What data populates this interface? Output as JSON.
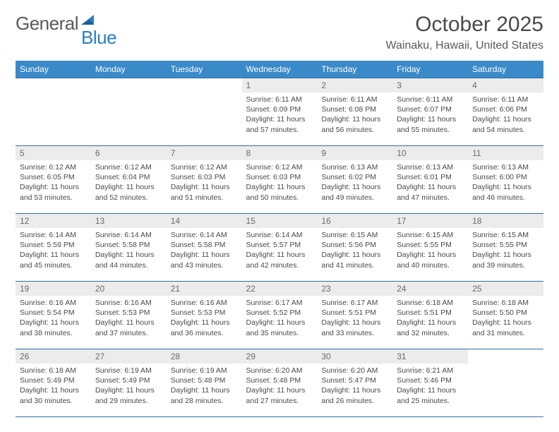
{
  "logo": {
    "word1": "General",
    "word2": "Blue"
  },
  "title": "October 2025",
  "location": "Wainaku, Hawaii, United States",
  "colors": {
    "header_bg": "#3a8ac9",
    "header_text": "#ffffff",
    "rule": "#2f6fa3",
    "daynum_bg": "#ececec",
    "text": "#4a4a4a",
    "logo_blue": "#2a7ec7"
  },
  "day_labels": [
    "Sunday",
    "Monday",
    "Tuesday",
    "Wednesday",
    "Thursday",
    "Friday",
    "Saturday"
  ],
  "weeks": [
    [
      {
        "num": "",
        "sunrise": "",
        "sunset": "",
        "daylight": "",
        "empty": true
      },
      {
        "num": "",
        "sunrise": "",
        "sunset": "",
        "daylight": "",
        "empty": true
      },
      {
        "num": "",
        "sunrise": "",
        "sunset": "",
        "daylight": "",
        "empty": true
      },
      {
        "num": "1",
        "sunrise": "Sunrise: 6:11 AM",
        "sunset": "Sunset: 6:09 PM",
        "daylight": "Daylight: 11 hours and 57 minutes."
      },
      {
        "num": "2",
        "sunrise": "Sunrise: 6:11 AM",
        "sunset": "Sunset: 6:08 PM",
        "daylight": "Daylight: 11 hours and 56 minutes."
      },
      {
        "num": "3",
        "sunrise": "Sunrise: 6:11 AM",
        "sunset": "Sunset: 6:07 PM",
        "daylight": "Daylight: 11 hours and 55 minutes."
      },
      {
        "num": "4",
        "sunrise": "Sunrise: 6:11 AM",
        "sunset": "Sunset: 6:06 PM",
        "daylight": "Daylight: 11 hours and 54 minutes."
      }
    ],
    [
      {
        "num": "5",
        "sunrise": "Sunrise: 6:12 AM",
        "sunset": "Sunset: 6:05 PM",
        "daylight": "Daylight: 11 hours and 53 minutes."
      },
      {
        "num": "6",
        "sunrise": "Sunrise: 6:12 AM",
        "sunset": "Sunset: 6:04 PM",
        "daylight": "Daylight: 11 hours and 52 minutes."
      },
      {
        "num": "7",
        "sunrise": "Sunrise: 6:12 AM",
        "sunset": "Sunset: 6:03 PM",
        "daylight": "Daylight: 11 hours and 51 minutes."
      },
      {
        "num": "8",
        "sunrise": "Sunrise: 6:12 AM",
        "sunset": "Sunset: 6:03 PM",
        "daylight": "Daylight: 11 hours and 50 minutes."
      },
      {
        "num": "9",
        "sunrise": "Sunrise: 6:13 AM",
        "sunset": "Sunset: 6:02 PM",
        "daylight": "Daylight: 11 hours and 49 minutes."
      },
      {
        "num": "10",
        "sunrise": "Sunrise: 6:13 AM",
        "sunset": "Sunset: 6:01 PM",
        "daylight": "Daylight: 11 hours and 47 minutes."
      },
      {
        "num": "11",
        "sunrise": "Sunrise: 6:13 AM",
        "sunset": "Sunset: 6:00 PM",
        "daylight": "Daylight: 11 hours and 46 minutes."
      }
    ],
    [
      {
        "num": "12",
        "sunrise": "Sunrise: 6:14 AM",
        "sunset": "Sunset: 5:59 PM",
        "daylight": "Daylight: 11 hours and 45 minutes."
      },
      {
        "num": "13",
        "sunrise": "Sunrise: 6:14 AM",
        "sunset": "Sunset: 5:58 PM",
        "daylight": "Daylight: 11 hours and 44 minutes."
      },
      {
        "num": "14",
        "sunrise": "Sunrise: 6:14 AM",
        "sunset": "Sunset: 5:58 PM",
        "daylight": "Daylight: 11 hours and 43 minutes."
      },
      {
        "num": "15",
        "sunrise": "Sunrise: 6:14 AM",
        "sunset": "Sunset: 5:57 PM",
        "daylight": "Daylight: 11 hours and 42 minutes."
      },
      {
        "num": "16",
        "sunrise": "Sunrise: 6:15 AM",
        "sunset": "Sunset: 5:56 PM",
        "daylight": "Daylight: 11 hours and 41 minutes."
      },
      {
        "num": "17",
        "sunrise": "Sunrise: 6:15 AM",
        "sunset": "Sunset: 5:55 PM",
        "daylight": "Daylight: 11 hours and 40 minutes."
      },
      {
        "num": "18",
        "sunrise": "Sunrise: 6:15 AM",
        "sunset": "Sunset: 5:55 PM",
        "daylight": "Daylight: 11 hours and 39 minutes."
      }
    ],
    [
      {
        "num": "19",
        "sunrise": "Sunrise: 6:16 AM",
        "sunset": "Sunset: 5:54 PM",
        "daylight": "Daylight: 11 hours and 38 minutes."
      },
      {
        "num": "20",
        "sunrise": "Sunrise: 6:16 AM",
        "sunset": "Sunset: 5:53 PM",
        "daylight": "Daylight: 11 hours and 37 minutes."
      },
      {
        "num": "21",
        "sunrise": "Sunrise: 6:16 AM",
        "sunset": "Sunset: 5:53 PM",
        "daylight": "Daylight: 11 hours and 36 minutes."
      },
      {
        "num": "22",
        "sunrise": "Sunrise: 6:17 AM",
        "sunset": "Sunset: 5:52 PM",
        "daylight": "Daylight: 11 hours and 35 minutes."
      },
      {
        "num": "23",
        "sunrise": "Sunrise: 6:17 AM",
        "sunset": "Sunset: 5:51 PM",
        "daylight": "Daylight: 11 hours and 33 minutes."
      },
      {
        "num": "24",
        "sunrise": "Sunrise: 6:18 AM",
        "sunset": "Sunset: 5:51 PM",
        "daylight": "Daylight: 11 hours and 32 minutes."
      },
      {
        "num": "25",
        "sunrise": "Sunrise: 6:18 AM",
        "sunset": "Sunset: 5:50 PM",
        "daylight": "Daylight: 11 hours and 31 minutes."
      }
    ],
    [
      {
        "num": "26",
        "sunrise": "Sunrise: 6:18 AM",
        "sunset": "Sunset: 5:49 PM",
        "daylight": "Daylight: 11 hours and 30 minutes."
      },
      {
        "num": "27",
        "sunrise": "Sunrise: 6:19 AM",
        "sunset": "Sunset: 5:49 PM",
        "daylight": "Daylight: 11 hours and 29 minutes."
      },
      {
        "num": "28",
        "sunrise": "Sunrise: 6:19 AM",
        "sunset": "Sunset: 5:48 PM",
        "daylight": "Daylight: 11 hours and 28 minutes."
      },
      {
        "num": "29",
        "sunrise": "Sunrise: 6:20 AM",
        "sunset": "Sunset: 5:48 PM",
        "daylight": "Daylight: 11 hours and 27 minutes."
      },
      {
        "num": "30",
        "sunrise": "Sunrise: 6:20 AM",
        "sunset": "Sunset: 5:47 PM",
        "daylight": "Daylight: 11 hours and 26 minutes."
      },
      {
        "num": "31",
        "sunrise": "Sunrise: 6:21 AM",
        "sunset": "Sunset: 5:46 PM",
        "daylight": "Daylight: 11 hours and 25 minutes."
      },
      {
        "num": "",
        "sunrise": "",
        "sunset": "",
        "daylight": "",
        "empty": true
      }
    ]
  ]
}
